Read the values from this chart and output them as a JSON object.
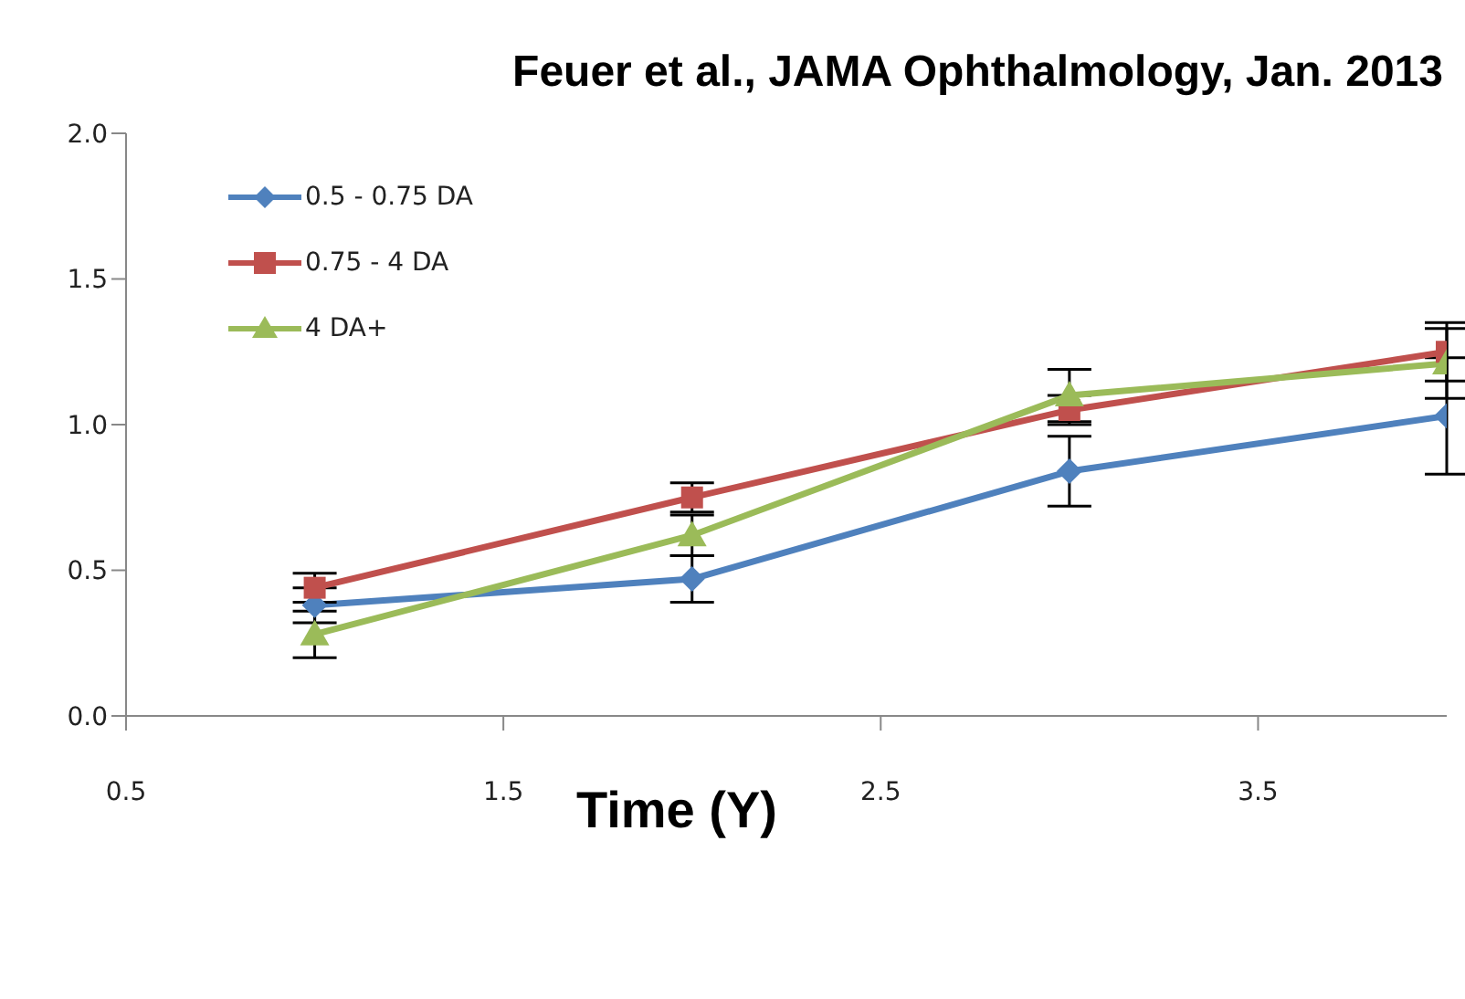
{
  "chart_data": {
    "type": "line",
    "title": "Feuer et al., JAMA Ophthalmology, Jan. 2013",
    "xlabel": "Time (Y)",
    "x": [
      1,
      2,
      3,
      4
    ],
    "xlim": [
      0.5,
      4.0
    ],
    "xticks": [
      0.5,
      1.5,
      2.5,
      3.5
    ],
    "ylim": [
      0,
      2.0
    ],
    "yticks": [
      {
        "value": 0,
        "label": "0.0"
      },
      0.5,
      {
        "value": 1,
        "label": "1.0"
      },
      1.5,
      {
        "value": 2,
        "label": "2.0"
      }
    ],
    "grid": false,
    "legend": "top left",
    "line_style": "solid",
    "series": [
      {
        "name": "0.5 - 0.75 DA",
        "color": "#4f81bd",
        "marker": "diamond",
        "values": [
          0.38,
          0.47,
          0.84,
          1.03
        ],
        "errors": [
          0.06,
          0.08,
          0.12,
          0.2
        ]
      },
      {
        "name": "0.75 - 4 DA",
        "color": "#c0504d",
        "marker": "square",
        "values": [
          0.44,
          0.75,
          1.05,
          1.25
        ],
        "errors": [
          0.05,
          0.05,
          0.05,
          0.1
        ]
      },
      {
        "name": "4 DA+",
        "color": "#9bbb59",
        "marker": "triangle",
        "values": [
          0.28,
          0.62,
          1.1,
          1.21
        ],
        "errors": [
          0.08,
          0.07,
          0.09,
          0.12
        ]
      }
    ]
  }
}
